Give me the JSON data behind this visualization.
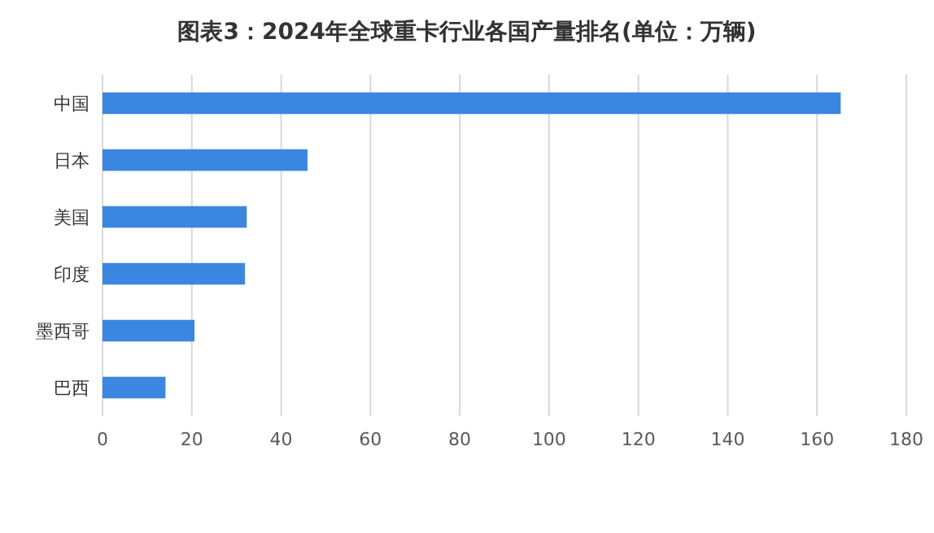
{
  "chart_data": {
    "type": "bar",
    "orientation": "horizontal",
    "title": "图表3：2024年全球重卡行业各国产量排名(单位：万辆)",
    "categories": [
      "中国",
      "日本",
      "美国",
      "印度",
      "墨西哥",
      "巴西"
    ],
    "values": [
      165.3,
      45.9,
      32.3,
      31.9,
      20.6,
      14.1
    ],
    "color": "#3a86e0",
    "xlim": [
      0,
      180
    ],
    "xticks": [
      0,
      20,
      40,
      60,
      80,
      100,
      120,
      140,
      160,
      180
    ],
    "grid": "x"
  }
}
